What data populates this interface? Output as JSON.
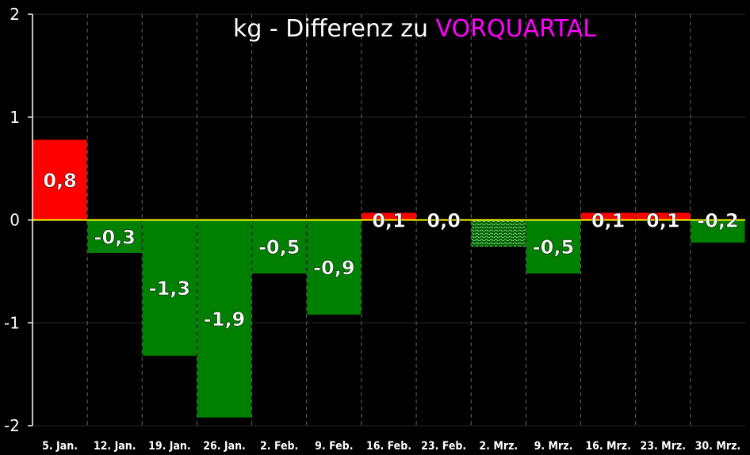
{
  "chart_data": {
    "type": "bar",
    "title": "kg - Differenz zu ",
    "title_accent": "VORQUARTAL",
    "categories": [
      "5. Jan.",
      "12. Jan.",
      "19. Jan.",
      "26. Jan.",
      "2. Feb.",
      "9. Feb.",
      "16. Feb.",
      "23. Feb.",
      "2. Mrz.",
      "9. Mrz.",
      "16. Mrz.",
      "23. Mrz.",
      "30. Mrz."
    ],
    "values": [
      0.78,
      -0.32,
      -1.32,
      -1.92,
      -0.52,
      -0.92,
      0.07,
      0.0,
      -0.26,
      -0.52,
      0.07,
      0.07,
      -0.22
    ],
    "labels": [
      "0,8",
      "-0,3",
      "-1,3",
      "-1,9",
      "-0,5",
      "-0,9",
      "0,1",
      "0,0",
      "",
      "-0,5",
      "0,1",
      "0,1",
      "-0,2"
    ],
    "styles": [
      "pos",
      "neg",
      "neg",
      "neg",
      "neg",
      "neg",
      "pos",
      "pos",
      "hatched",
      "neg",
      "pos",
      "pos",
      "neg"
    ],
    "ylim": [
      -2,
      2
    ],
    "yticks": [
      2,
      1,
      0,
      -1,
      -2
    ],
    "grid": true,
    "colors": {
      "background": "#000000",
      "positive": "#ff0000",
      "negative": "#008000",
      "zero_line": "#ffff00",
      "title_accent": "#ff00ff",
      "text": "#ffffff"
    }
  }
}
